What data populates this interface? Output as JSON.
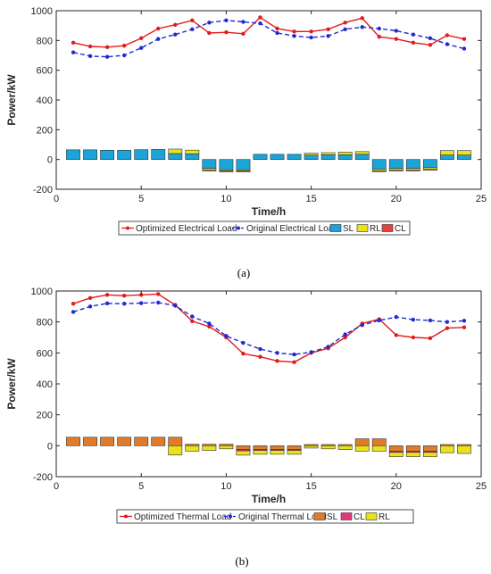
{
  "chart_data": [
    {
      "type": "bar+line",
      "caption": "(a)",
      "xlabel": "Time/h",
      "ylabel": "Power/kW",
      "xlim": [
        0,
        25
      ],
      "ylim": [
        -200,
        1000
      ],
      "xticks": [
        0,
        5,
        10,
        15,
        20,
        25
      ],
      "yticks": [
        -200,
        0,
        200,
        400,
        600,
        800,
        1000
      ],
      "legend_position": "bottom",
      "x": [
        1,
        2,
        3,
        4,
        5,
        6,
        7,
        8,
        9,
        10,
        11,
        12,
        13,
        14,
        15,
        16,
        17,
        18,
        19,
        20,
        21,
        22,
        23,
        24
      ],
      "lines": [
        {
          "name": "Optimized Electrical Load",
          "color": "#e41a1c",
          "style": "solid",
          "values": [
            785,
            760,
            755,
            765,
            815,
            880,
            905,
            935,
            850,
            855,
            845,
            955,
            880,
            860,
            860,
            875,
            920,
            950,
            825,
            810,
            785,
            770,
            835,
            810
          ]
        },
        {
          "name": "Original Electrical Load",
          "color": "#1f2ad6",
          "style": "dashed",
          "values": [
            720,
            695,
            690,
            700,
            750,
            810,
            840,
            875,
            920,
            935,
            925,
            915,
            850,
            830,
            820,
            830,
            875,
            890,
            880,
            865,
            840,
            815,
            775,
            745
          ]
        }
      ],
      "bars": [
        {
          "name": "SL",
          "color": "#1ca3d8",
          "values": [
            65,
            65,
            62,
            62,
            66,
            68,
            40,
            38,
            -60,
            -70,
            -70,
            35,
            35,
            35,
            30,
            32,
            32,
            35,
            -65,
            -60,
            -60,
            -55,
            30,
            30
          ]
        },
        {
          "name": "RL",
          "color": "#e8e31c",
          "values": [
            0,
            0,
            0,
            0,
            0,
            0,
            30,
            25,
            -12,
            -8,
            -8,
            0,
            0,
            0,
            12,
            14,
            18,
            18,
            -12,
            -12,
            -12,
            -12,
            30,
            30
          ]
        },
        {
          "name": "CL",
          "color": "#e84040",
          "values": [
            0,
            0,
            0,
            0,
            0,
            0,
            0,
            0,
            -5,
            -5,
            -5,
            0,
            0,
            0,
            0,
            0,
            0,
            0,
            -5,
            -5,
            -5,
            -5,
            0,
            0
          ]
        }
      ]
    },
    {
      "type": "bar+line",
      "caption": "(b)",
      "xlabel": "Time/h",
      "ylabel": "Power/kW",
      "xlim": [
        0,
        25
      ],
      "ylim": [
        -200,
        1000
      ],
      "xticks": [
        0,
        5,
        10,
        15,
        20,
        25
      ],
      "yticks": [
        -200,
        0,
        200,
        400,
        600,
        800,
        1000
      ],
      "legend_position": "bottom",
      "x": [
        1,
        2,
        3,
        4,
        5,
        6,
        7,
        8,
        9,
        10,
        11,
        12,
        13,
        14,
        15,
        16,
        17,
        18,
        19,
        20,
        21,
        22,
        23,
        24
      ],
      "lines": [
        {
          "name": "Optimized Thermal Load",
          "color": "#e41a1c",
          "style": "solid",
          "values": [
            918,
            955,
            975,
            970,
            975,
            980,
            910,
            805,
            770,
            700,
            595,
            575,
            548,
            540,
            600,
            630,
            700,
            790,
            818,
            715,
            700,
            695,
            760,
            765
          ]
        },
        {
          "name": "Original Thermal Load",
          "color": "#1f2ad6",
          "style": "dashed",
          "values": [
            865,
            900,
            920,
            918,
            922,
            925,
            905,
            835,
            790,
            710,
            665,
            625,
            600,
            590,
            605,
            640,
            720,
            780,
            810,
            832,
            815,
            810,
            800,
            808
          ]
        }
      ],
      "bars": [
        {
          "name": "SL",
          "color": "#e07b2c",
          "values": [
            55,
            55,
            55,
            55,
            55,
            55,
            55,
            10,
            10,
            10,
            -25,
            -25,
            -25,
            -25,
            8,
            8,
            8,
            45,
            45,
            -35,
            -35,
            -35,
            8,
            8
          ]
        },
        {
          "name": "CL",
          "color": "#e6357a",
          "values": [
            0,
            0,
            0,
            0,
            0,
            0,
            0,
            0,
            0,
            0,
            -8,
            -5,
            -5,
            -5,
            0,
            0,
            0,
            0,
            0,
            -8,
            -8,
            -8,
            0,
            0
          ]
        },
        {
          "name": "RL",
          "color": "#e8e31c",
          "values": [
            0,
            0,
            0,
            0,
            0,
            0,
            -60,
            -35,
            -30,
            -20,
            -28,
            -25,
            -25,
            -25,
            -15,
            -20,
            -25,
            -35,
            -35,
            -28,
            -28,
            -28,
            -45,
            -50
          ]
        }
      ]
    }
  ]
}
